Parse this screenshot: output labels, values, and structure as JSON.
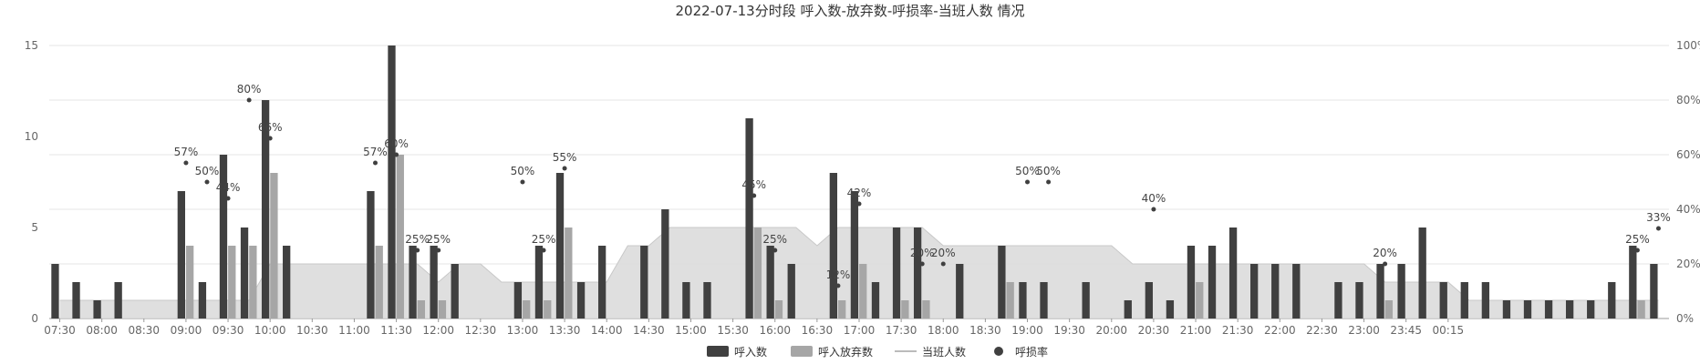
{
  "chart_data": {
    "type": "bar",
    "title": "2022-07-13分时段 呼入数-放弃数-呼损率-当班人数 情况",
    "x_tick_labels": [
      "07:30",
      "08:00",
      "08:30",
      "09:00",
      "09:30",
      "10:00",
      "10:30",
      "11:00",
      "11:30",
      "12:00",
      "12:30",
      "13:00",
      "13:30",
      "14:00",
      "14:30",
      "15:00",
      "15:30",
      "16:00",
      "16:30",
      "17:00",
      "17:30",
      "18:00",
      "18:30",
      "19:00",
      "19:30",
      "20:00",
      "20:30",
      "21:00",
      "21:30",
      "22:00",
      "22:30",
      "23:00",
      "23:45",
      "00:15"
    ],
    "y_left": {
      "ticks": [
        "0",
        "5",
        "10",
        "15"
      ],
      "range": [
        0,
        15
      ]
    },
    "y_right": {
      "ticks": [
        "0%",
        "20%",
        "40%",
        "60%",
        "80%",
        "100%"
      ],
      "range": [
        0,
        100
      ]
    },
    "legend": {
      "placement": "bottom-center",
      "items": [
        {
          "label": "呼入数",
          "color": "#404040",
          "icon": "rect"
        },
        {
          "label": "呼入放弃数",
          "color": "#a6a6a6",
          "icon": "rect"
        },
        {
          "label": "当班人数",
          "color": "#d0d0d0",
          "icon": "line"
        },
        {
          "label": "呼损率",
          "color": "#404040",
          "icon": "circle"
        }
      ]
    },
    "series": [
      {
        "name": "呼入数",
        "type": "bar",
        "color": "#404040",
        "values": [
          3,
          2,
          1,
          2,
          0,
          0,
          7,
          2,
          9,
          5,
          12,
          4,
          0,
          0,
          0,
          7,
          15,
          4,
          4,
          3,
          0,
          0,
          2,
          4,
          8,
          2,
          4,
          0,
          4,
          6,
          2,
          2,
          0,
          11,
          4,
          3,
          0,
          8,
          7,
          2,
          5,
          5,
          0,
          3,
          0,
          4,
          2,
          2,
          0,
          2,
          0,
          1,
          2,
          1,
          4,
          4,
          5,
          3,
          3,
          3,
          0,
          2,
          2,
          3,
          3,
          5,
          2,
          2,
          2,
          1,
          1,
          1,
          1,
          1,
          2,
          4,
          3
        ]
      },
      {
        "name": "呼入放弃数",
        "type": "bar",
        "color": "#a6a6a6",
        "values": [
          0,
          0,
          0,
          0,
          0,
          0,
          4,
          0,
          4,
          4,
          8,
          0,
          0,
          0,
          0,
          4,
          9,
          1,
          1,
          0,
          0,
          0,
          1,
          1,
          5,
          0,
          0,
          0,
          0,
          0,
          0,
          0,
          0,
          5,
          1,
          0,
          0,
          1,
          3,
          0,
          1,
          1,
          0,
          0,
          0,
          2,
          0,
          0,
          0,
          0,
          0,
          0,
          0,
          0,
          2,
          0,
          0,
          0,
          0,
          0,
          0,
          0,
          0,
          1,
          0,
          0,
          0,
          0,
          0,
          0,
          0,
          0,
          0,
          0,
          0,
          1,
          0
        ]
      },
      {
        "name": "当班人数",
        "type": "area",
        "color": "#d9d9d9",
        "values": [
          1,
          1,
          1,
          1,
          1,
          1,
          1,
          1,
          1,
          1,
          3,
          3,
          3,
          3,
          3,
          3,
          3,
          3,
          2,
          3,
          3,
          2,
          2,
          2,
          2,
          2,
          2,
          4,
          4,
          5,
          5,
          5,
          5,
          5,
          5,
          5,
          4,
          5,
          5,
          5,
          5,
          5,
          4,
          4,
          4,
          4,
          4,
          4,
          4,
          4,
          4,
          3,
          3,
          3,
          3,
          3,
          3,
          3,
          3,
          3,
          3,
          3,
          3,
          2,
          2,
          2,
          2,
          1,
          1,
          1,
          1,
          1,
          1,
          1,
          1,
          1,
          1
        ]
      },
      {
        "name": "呼损率",
        "type": "scatter",
        "color": "#404040",
        "points": [
          [
            6,
            57
          ],
          [
            7,
            50
          ],
          [
            8,
            44
          ],
          [
            9,
            80
          ],
          [
            10,
            66
          ],
          [
            15,
            57
          ],
          [
            16,
            60
          ],
          [
            17,
            25
          ],
          [
            18,
            25
          ],
          [
            22,
            50
          ],
          [
            23,
            25
          ],
          [
            24,
            55
          ],
          [
            33,
            45
          ],
          [
            34,
            25
          ],
          [
            37,
            12
          ],
          [
            38,
            42
          ],
          [
            41,
            20
          ],
          [
            42,
            20
          ],
          [
            46,
            50
          ],
          [
            47,
            50
          ],
          [
            52,
            40
          ],
          [
            63,
            20
          ],
          [
            75,
            25
          ],
          [
            76,
            33
          ]
        ]
      }
    ]
  }
}
